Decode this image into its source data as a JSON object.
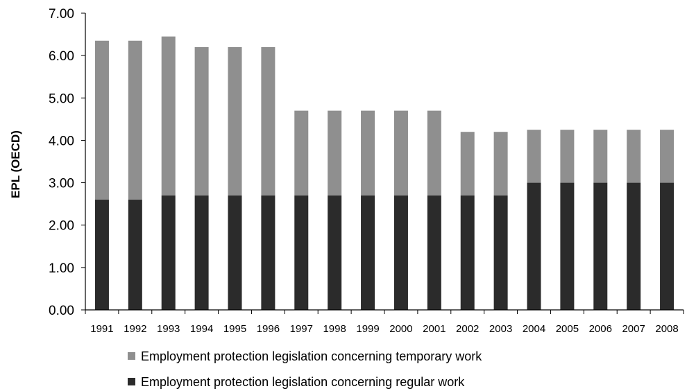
{
  "chart_data": {
    "type": "bar",
    "stacked": true,
    "categories": [
      "1991",
      "1992",
      "1993",
      "1994",
      "1995",
      "1996",
      "1997",
      "1998",
      "1999",
      "2000",
      "2001",
      "2002",
      "2003",
      "2004",
      "2005",
      "2006",
      "2007",
      "2008"
    ],
    "series": [
      {
        "name": "Employment protection legislation concerning regular work",
        "color": "#2b2b2b",
        "values": [
          2.6,
          2.6,
          2.7,
          2.7,
          2.7,
          2.7,
          2.7,
          2.7,
          2.7,
          2.7,
          2.7,
          2.7,
          2.7,
          3.0,
          3.0,
          3.0,
          3.0,
          3.0
        ]
      },
      {
        "name": "Employment protection legislation concerning temporary work",
        "color": "#8f8f8f",
        "values": [
          3.75,
          3.75,
          3.75,
          3.5,
          3.5,
          3.5,
          2.0,
          2.0,
          2.0,
          2.0,
          2.0,
          1.5,
          1.5,
          1.25,
          1.25,
          1.25,
          1.25,
          1.25
        ]
      }
    ],
    "ylabel": "EPL (OECD)",
    "xlabel": "",
    "title": "",
    "ylim": [
      0,
      7
    ],
    "yticks": [
      "0.00",
      "1.00",
      "2.00",
      "3.00",
      "4.00",
      "5.00",
      "6.00",
      "7.00"
    ],
    "grid": false,
    "legend_position": "bottom",
    "legend": [
      {
        "label": "Employment protection legislation concerning temporary work",
        "color": "#8f8f8f"
      },
      {
        "label": "Employment protection legislation concerning regular work",
        "color": "#2b2b2b"
      }
    ]
  }
}
